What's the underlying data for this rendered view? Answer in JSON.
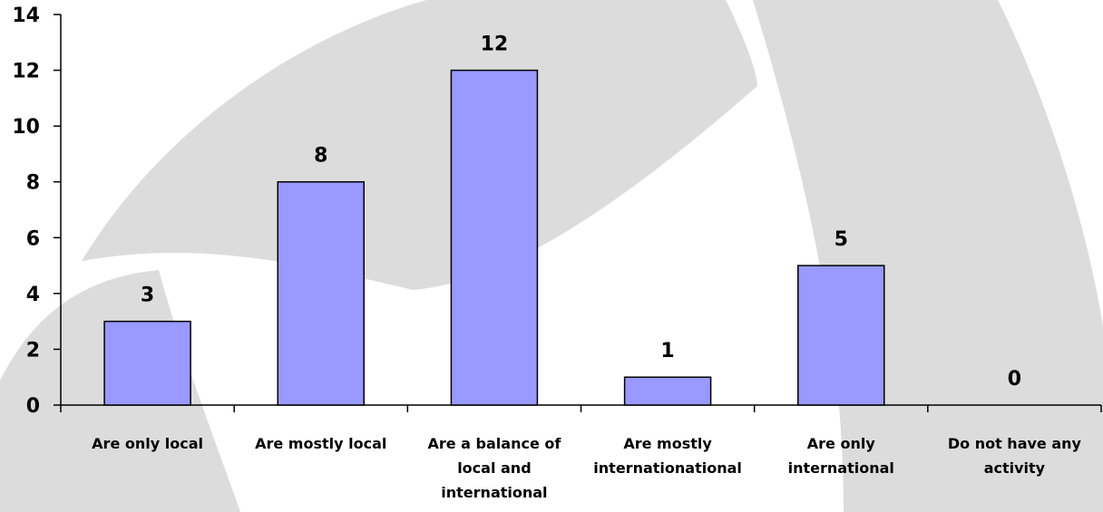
{
  "chart_data": {
    "type": "bar",
    "categories": [
      "Are only local",
      "Are mostly local",
      "Are a balance of local and international",
      "Are mostly internationational",
      "Are only international",
      "Do not have any activity"
    ],
    "category_lines": [
      [
        "Are only local"
      ],
      [
        "Are mostly local"
      ],
      [
        "Are a balance of",
        "local and",
        "international"
      ],
      [
        "Are mostly",
        "internationational"
      ],
      [
        "Are only",
        "international"
      ],
      [
        "Do not have any",
        "activity"
      ]
    ],
    "values": [
      3,
      8,
      12,
      1,
      5,
      0
    ],
    "data_labels": [
      "3",
      "8",
      "12",
      "1",
      "5",
      "0"
    ],
    "ylim": [
      0,
      14
    ],
    "yticks": [
      0,
      2,
      4,
      6,
      8,
      10,
      12,
      14
    ],
    "ytick_labels": [
      "0",
      "2",
      "4",
      "6",
      "8",
      "10",
      "12",
      "14"
    ],
    "grid": false,
    "legend": "none",
    "bar_color": "#9999ff",
    "bar_edge_color": "#000000",
    "background_shape_color": "#dcdcdc"
  }
}
